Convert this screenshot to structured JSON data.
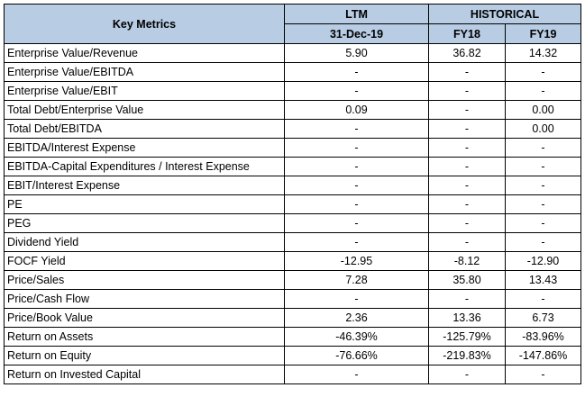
{
  "header": {
    "title": "Key Metrics",
    "ltm": "LTM",
    "historical": "HISTORICAL",
    "ltm_date": "31-Dec-19",
    "fy18": "FY18",
    "fy19": "FY19"
  },
  "rows": [
    {
      "label": "Enterprise Value/Revenue",
      "ltm": "5.90",
      "fy18": "36.82",
      "fy19": "14.32"
    },
    {
      "label": "Enterprise Value/EBITDA",
      "ltm": "-",
      "fy18": "-",
      "fy19": "-"
    },
    {
      "label": "Enterprise Value/EBIT",
      "ltm": "-",
      "fy18": "-",
      "fy19": "-"
    },
    {
      "label": "Total Debt/Enterprise Value",
      "ltm": "0.09",
      "fy18": "-",
      "fy19": "0.00"
    },
    {
      "label": "Total Debt/EBITDA",
      "ltm": "-",
      "fy18": "-",
      "fy19": "0.00"
    },
    {
      "label": "EBITDA/Interest Expense",
      "ltm": "-",
      "fy18": "-",
      "fy19": "-"
    },
    {
      "label": "EBITDA-Capital Expenditures / Interest Expense",
      "ltm": "-",
      "fy18": "-",
      "fy19": "-"
    },
    {
      "label": "EBIT/Interest Expense",
      "ltm": "-",
      "fy18": "-",
      "fy19": "-"
    },
    {
      "label": "PE",
      "ltm": "-",
      "fy18": "-",
      "fy19": "-"
    },
    {
      "label": "PEG",
      "ltm": "-",
      "fy18": "-",
      "fy19": "-"
    },
    {
      "label": "Dividend Yield",
      "ltm": "-",
      "fy18": "-",
      "fy19": "-"
    },
    {
      "label": "FOCF Yield",
      "ltm": "-12.95",
      "fy18": "-8.12",
      "fy19": "-12.90"
    },
    {
      "label": "Price/Sales",
      "ltm": "7.28",
      "fy18": "35.80",
      "fy19": "13.43"
    },
    {
      "label": "Price/Cash Flow",
      "ltm": "-",
      "fy18": "-",
      "fy19": "-"
    },
    {
      "label": "Price/Book Value",
      "ltm": "2.36",
      "fy18": "13.36",
      "fy19": "6.73"
    },
    {
      "label": "Return on Assets",
      "ltm": "-46.39%",
      "fy18": "-125.79%",
      "fy19": "-83.96%"
    },
    {
      "label": "Return on Equity",
      "ltm": "-76.66%",
      "fy18": "-219.83%",
      "fy19": "-147.86%"
    },
    {
      "label": "Return on Invested Capital",
      "ltm": "-",
      "fy18": "-",
      "fy19": "-"
    }
  ]
}
